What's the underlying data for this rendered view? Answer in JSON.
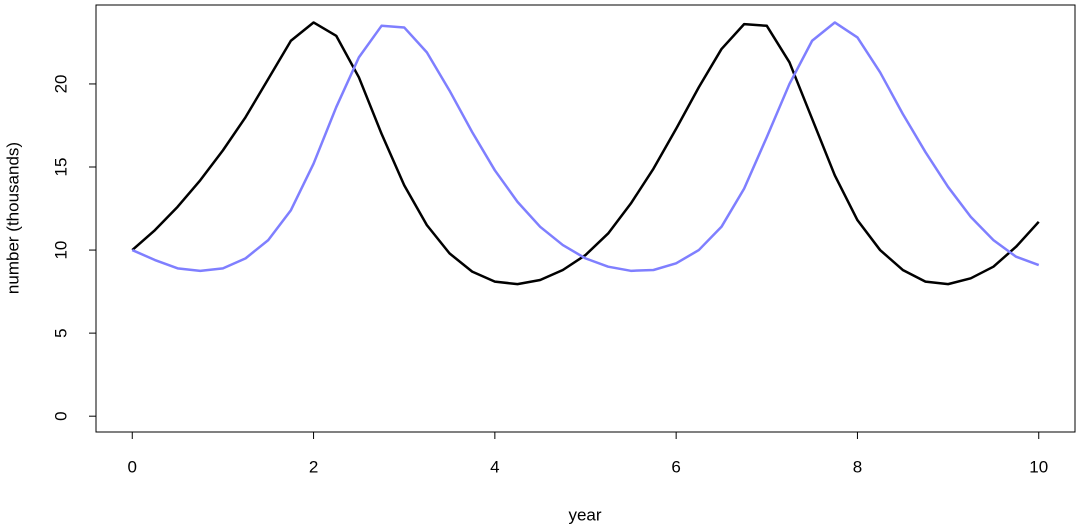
{
  "chart_data": {
    "type": "line",
    "xlabel": "year",
    "ylabel": "number (thousands)",
    "x": [
      0,
      0.25,
      0.5,
      0.75,
      1,
      1.25,
      1.5,
      1.75,
      2,
      2.25,
      2.5,
      2.75,
      3,
      3.25,
      3.5,
      3.75,
      4,
      4.25,
      4.5,
      4.75,
      5,
      5.25,
      5.5,
      5.75,
      6,
      6.25,
      6.5,
      6.75,
      7,
      7.25,
      7.5,
      7.75,
      8,
      8.25,
      8.5,
      8.75,
      9,
      9.25,
      9.5,
      9.75,
      10
    ],
    "series": [
      {
        "color": "#000000",
        "values": [
          10,
          11.2,
          12.6,
          14.2,
          16.0,
          18.0,
          20.3,
          22.6,
          23.7,
          22.9,
          20.4,
          17.0,
          13.9,
          11.5,
          9.8,
          8.7,
          8.1,
          7.95,
          8.2,
          8.8,
          9.7,
          11.0,
          12.8,
          14.9,
          17.3,
          19.8,
          22.1,
          23.6,
          23.5,
          21.3,
          17.9,
          14.5,
          11.8,
          10.0,
          8.8,
          8.1,
          7.95,
          8.3,
          9.0,
          10.2,
          11.7
        ]
      },
      {
        "color": "#7f7fff",
        "values": [
          10,
          9.4,
          8.9,
          8.75,
          8.9,
          9.5,
          10.6,
          12.4,
          15.2,
          18.6,
          21.6,
          23.5,
          23.4,
          21.9,
          19.6,
          17.1,
          14.8,
          12.9,
          11.4,
          10.3,
          9.5,
          9.0,
          8.75,
          8.8,
          9.2,
          10.0,
          11.4,
          13.7,
          16.8,
          20.0,
          22.6,
          23.7,
          22.8,
          20.7,
          18.2,
          15.9,
          13.8,
          12.0,
          10.6,
          9.6,
          9.1
        ]
      }
    ],
    "xlim": [
      -0.4,
      10.4
    ],
    "xticks": [
      0,
      2,
      4,
      6,
      8,
      10
    ],
    "ylim": [
      -0.952,
      24.752
    ],
    "yticks": [
      0,
      5,
      10,
      15,
      20
    ]
  }
}
